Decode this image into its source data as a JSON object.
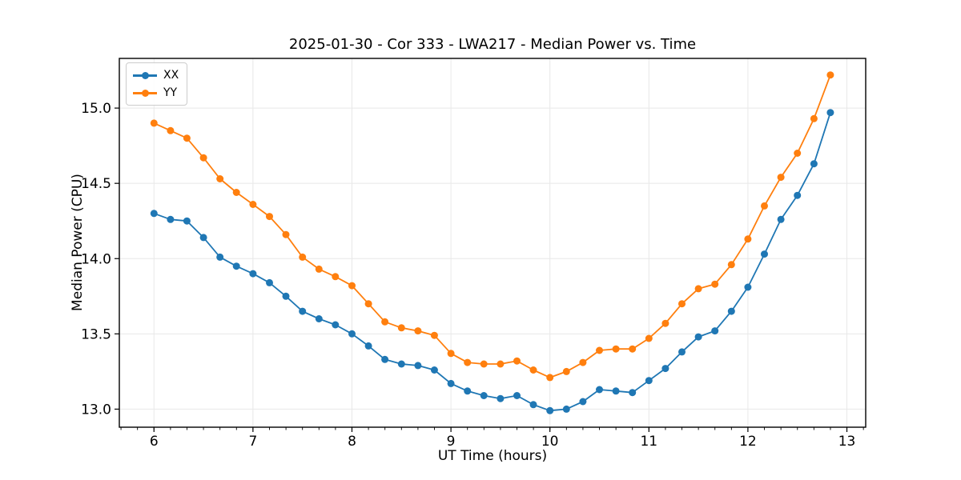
{
  "chart_data": {
    "type": "line",
    "title": "2025-01-30 - Cor 333 - LWA217 - Median Power vs. Time",
    "xlabel": "UT Time (hours)",
    "ylabel": "Median Power (CPU)",
    "xlim": [
      5.65,
      13.19
    ],
    "ylim": [
      12.88,
      15.33
    ],
    "x_ticks": [
      6,
      7,
      8,
      9,
      10,
      11,
      12,
      13
    ],
    "y_ticks": [
      13.0,
      13.5,
      14.0,
      14.5,
      15.0
    ],
    "x_minor_tick_step": 0.16667,
    "grid": true,
    "grid_color": "#e8e8e8",
    "axes_color": "#000000",
    "marker": "circle",
    "legend_position": "upper-left",
    "x": [
      6.0,
      6.167,
      6.333,
      6.5,
      6.667,
      6.833,
      7.0,
      7.167,
      7.333,
      7.5,
      7.667,
      7.833,
      8.0,
      8.167,
      8.333,
      8.5,
      8.667,
      8.833,
      9.0,
      9.167,
      9.333,
      9.5,
      9.667,
      9.833,
      10.0,
      10.167,
      10.333,
      10.5,
      10.667,
      10.833,
      11.0,
      11.167,
      11.333,
      11.5,
      11.667,
      11.833,
      12.0,
      12.167,
      12.333,
      12.5,
      12.667,
      12.833
    ],
    "series": [
      {
        "name": "XX",
        "color": "#1f77b4",
        "values": [
          14.3,
          14.26,
          14.25,
          14.14,
          14.01,
          13.95,
          13.9,
          13.84,
          13.75,
          13.65,
          13.6,
          13.56,
          13.5,
          13.42,
          13.33,
          13.3,
          13.29,
          13.26,
          13.17,
          13.12,
          13.09,
          13.07,
          13.09,
          13.03,
          12.99,
          13.0,
          13.05,
          13.13,
          13.12,
          13.11,
          13.19,
          13.27,
          13.38,
          13.48,
          13.52,
          13.65,
          13.81,
          14.03,
          14.26,
          14.42,
          14.63,
          14.97
        ]
      },
      {
        "name": "YY",
        "color": "#ff7f0e",
        "values": [
          14.9,
          14.85,
          14.8,
          14.67,
          14.53,
          14.44,
          14.36,
          14.28,
          14.16,
          14.01,
          13.93,
          13.88,
          13.82,
          13.7,
          13.58,
          13.54,
          13.52,
          13.49,
          13.37,
          13.31,
          13.3,
          13.3,
          13.32,
          13.26,
          13.21,
          13.25,
          13.31,
          13.39,
          13.4,
          13.4,
          13.47,
          13.57,
          13.7,
          13.8,
          13.83,
          13.96,
          14.13,
          14.35,
          14.54,
          14.7,
          14.93,
          15.22
        ]
      }
    ]
  }
}
